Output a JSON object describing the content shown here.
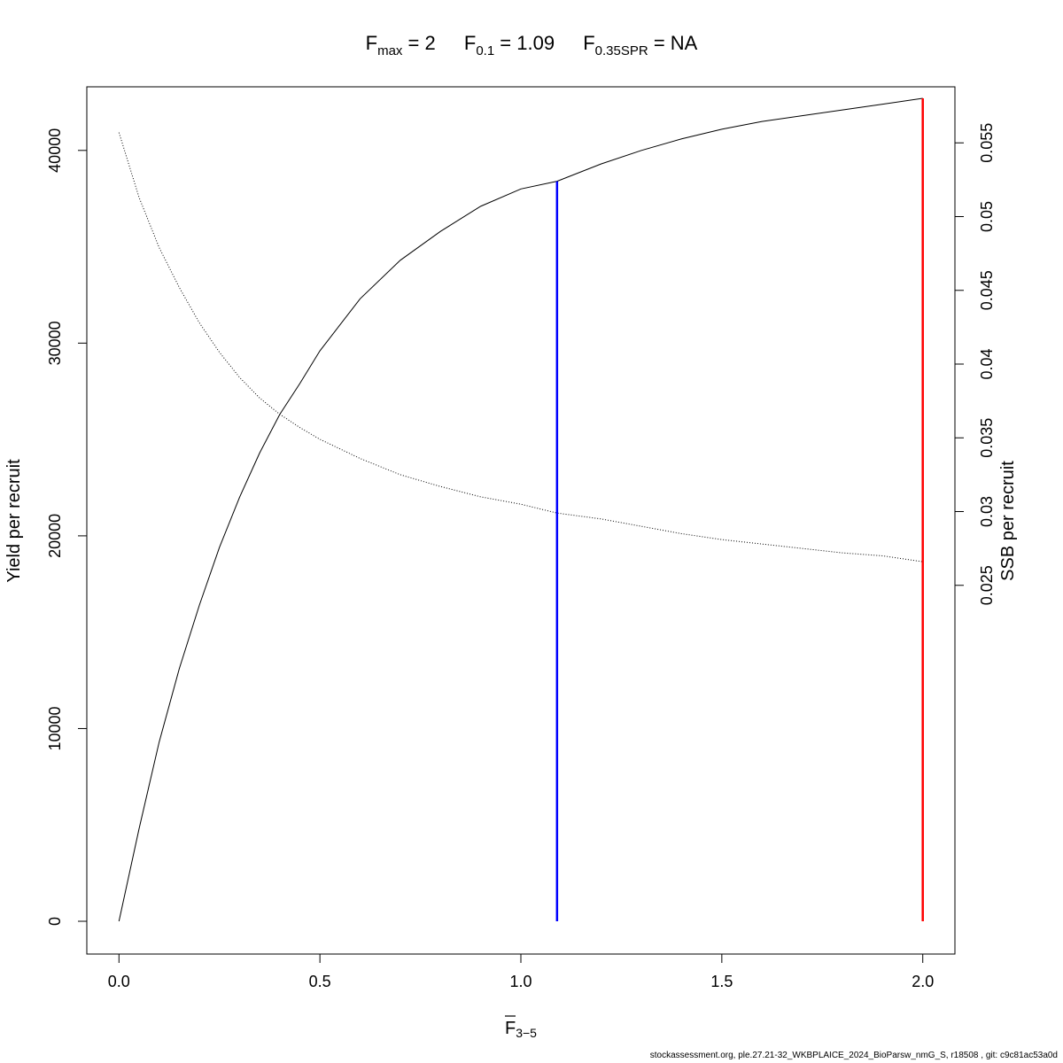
{
  "chart_data": {
    "type": "line",
    "title": {
      "fmax": {
        "base": "F",
        "sub": "max",
        "value": "2"
      },
      "f01": {
        "base": "F",
        "sub": "0.1",
        "value": "1.09"
      },
      "f035spr": {
        "base": "F",
        "sub": "0.35SPR",
        "value": "NA"
      }
    },
    "xlabel": {
      "base": "F",
      "sub": "3−5"
    },
    "ylabel_left": "Yield per recruit",
    "ylabel_right": "SSB per recruit",
    "xlim": [
      -0.08,
      2.08
    ],
    "ylim_left": [
      -1700,
      43300
    ],
    "ylim_right": [
      0.0,
      0.0588
    ],
    "x_ticks": [
      "0.0",
      "0.5",
      "1.0",
      "1.5",
      "2.0"
    ],
    "x_tick_values": [
      0.0,
      0.5,
      1.0,
      1.5,
      2.0
    ],
    "y_left_ticks": [
      "0",
      "10000",
      "20000",
      "30000",
      "40000"
    ],
    "y_left_tick_values": [
      0,
      10000,
      20000,
      30000,
      40000
    ],
    "y_right_ticks": [
      "0.025",
      "0.03",
      "0.035",
      "0.04",
      "0.045",
      "0.05",
      "0.055"
    ],
    "y_right_tick_values": [
      0.025,
      0.03,
      0.035,
      0.04,
      0.045,
      0.05,
      0.055
    ],
    "series": [
      {
        "axis": "left",
        "style": "solid",
        "x": [
          0.0,
          0.05,
          0.1,
          0.15,
          0.2,
          0.25,
          0.3,
          0.35,
          0.4,
          0.45,
          0.5,
          0.6,
          0.7,
          0.8,
          0.9,
          1.0,
          1.09,
          1.2,
          1.3,
          1.4,
          1.5,
          1.6,
          1.7,
          1.8,
          1.9,
          2.0
        ],
        "values": [
          0,
          4800,
          9300,
          13100,
          16400,
          19400,
          22000,
          24300,
          26300,
          27900,
          29600,
          32300,
          34300,
          35800,
          37100,
          38000,
          38400,
          39300,
          40000,
          40600,
          41100,
          41500,
          41800,
          42100,
          42400,
          42700
        ]
      },
      {
        "axis": "right",
        "style": "dotted",
        "x": [
          0.0,
          0.05,
          0.1,
          0.15,
          0.2,
          0.25,
          0.3,
          0.35,
          0.4,
          0.45,
          0.5,
          0.6,
          0.7,
          0.8,
          0.9,
          1.0,
          1.09,
          1.2,
          1.3,
          1.4,
          1.5,
          1.6,
          1.7,
          1.8,
          1.9,
          2.0
        ],
        "values": [
          0.0557,
          0.0513,
          0.0479,
          0.0452,
          0.0428,
          0.0408,
          0.0391,
          0.0377,
          0.0366,
          0.0357,
          0.0349,
          0.0336,
          0.0325,
          0.0317,
          0.031,
          0.0305,
          0.0299,
          0.0295,
          0.029,
          0.0285,
          0.0281,
          0.0278,
          0.0275,
          0.0272,
          0.027,
          0.0266
        ]
      }
    ],
    "reference_lines": [
      {
        "name": "F0.1",
        "x": 1.09,
        "y_to": 38400,
        "color": "#0000ff"
      },
      {
        "name": "Fmax",
        "x": 2.0,
        "y_to": 42700,
        "color": "#ff0000"
      }
    ],
    "grid": false,
    "legend": "none"
  },
  "footer": "stockassessment.org, ple.27.21-32_WKBPLAICE_2024_BioParsw_nmG_S, r18508 , git: c9c81ac53a0d"
}
